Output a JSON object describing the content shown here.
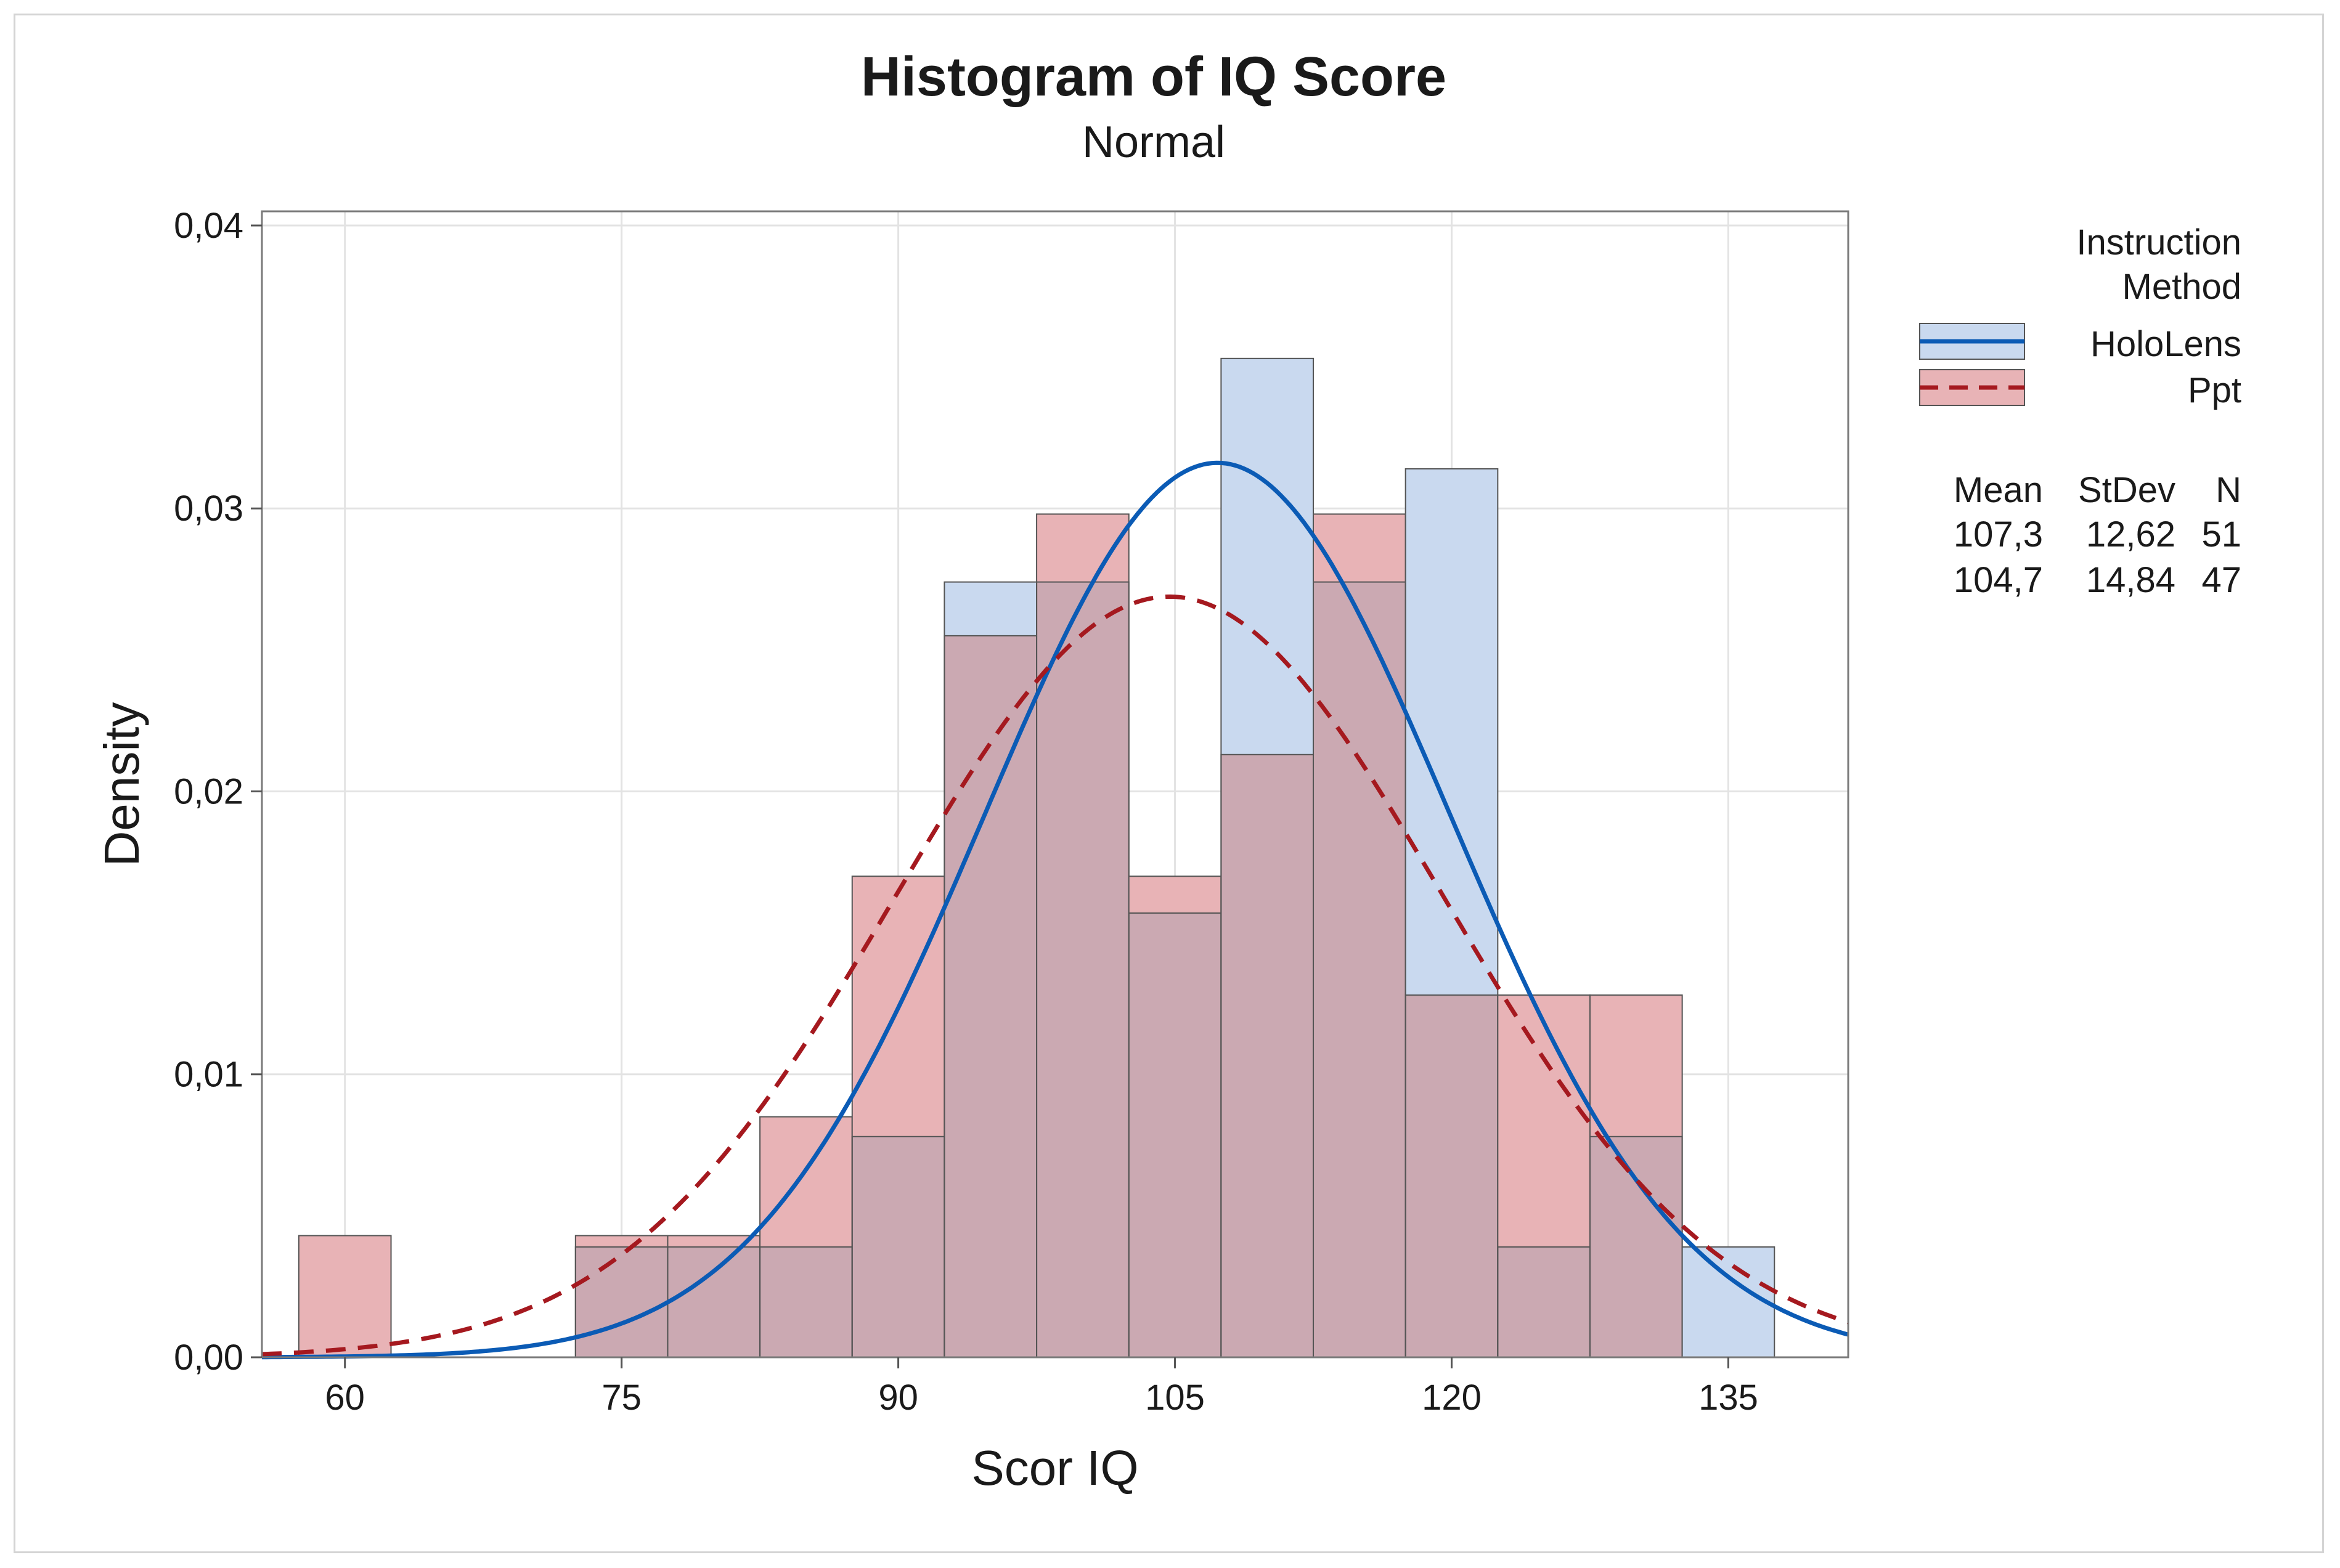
{
  "chart_data": {
    "type": "histogram",
    "title": "Histogram of IQ Score",
    "subtitle": "Normal",
    "xlabel": "Scor IQ",
    "ylabel": "Density",
    "xlim": [
      55.5,
      141.5
    ],
    "ylim": [
      0,
      0.0405
    ],
    "x_ticks": [
      60,
      75,
      90,
      105,
      120,
      135
    ],
    "x_tick_labels": [
      "60",
      "75",
      "90",
      "105",
      "120",
      "135"
    ],
    "y_ticks": [
      0,
      0.01,
      0.02,
      0.03,
      0.04
    ],
    "y_tick_labels": [
      "0,00",
      "0,01",
      "0,02",
      "0,03",
      "0,04"
    ],
    "grid": true,
    "bin_width": 5,
    "bin_centers": [
      60,
      65,
      70,
      75,
      80,
      85,
      90,
      95,
      100,
      105,
      110,
      115,
      120,
      125,
      130,
      135
    ],
    "legend": {
      "title_line1": "Instruction",
      "title_line2": "Method",
      "placement": "right"
    },
    "stats_headers": [
      "Mean",
      "StDev",
      "N"
    ],
    "series": [
      {
        "name": "HoloLens",
        "fill_color": "#c9d9ef",
        "line_color": "#0b5bb5",
        "line_style": "solid",
        "mean": 107.3,
        "stdev": 12.62,
        "n": 51,
        "mean_label": "107,3",
        "stdev_label": "12,62",
        "n_label": "51",
        "densities": [
          0,
          0,
          0,
          0.0039,
          0.0039,
          0.0039,
          0.0078,
          0.0274,
          0.0274,
          0.0157,
          0.0353,
          0.0274,
          0.0314,
          0.0039,
          0.0078,
          0.0039
        ]
      },
      {
        "name": "Ppt",
        "fill_color": "#e8b3b6",
        "line_color": "#a5191f",
        "line_style": "dashed",
        "mean": 104.7,
        "stdev": 14.84,
        "n": 47,
        "mean_label": "104,7",
        "stdev_label": "14,84",
        "n_label": "47",
        "densities": [
          0.0043,
          0,
          0,
          0.0043,
          0.0043,
          0.0085,
          0.017,
          0.0255,
          0.0298,
          0.017,
          0.0213,
          0.0298,
          0.0128,
          0.0128,
          0.0128,
          0
        ]
      }
    ],
    "overlap_fill_color": "#cba9b2"
  }
}
